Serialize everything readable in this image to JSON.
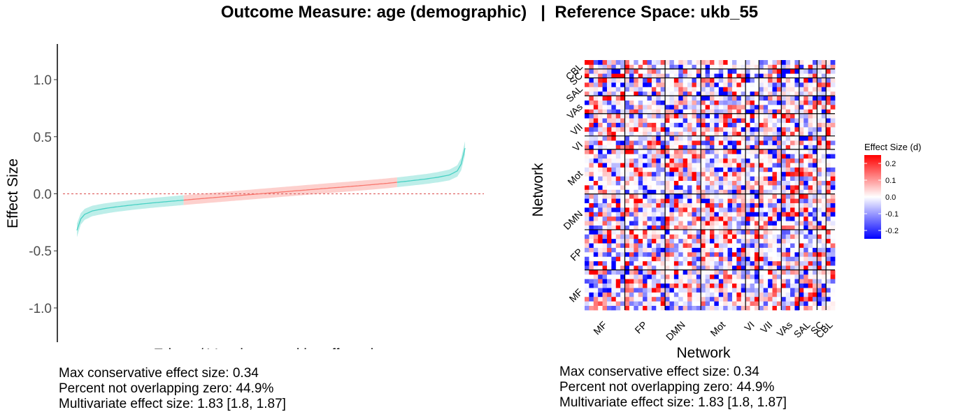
{
  "title": "Outcome Measure: age (demographic)   |  Reference Space: ukb_55",
  "chart_data": [
    {
      "type": "line",
      "xlabel": "Edges / Voxels, sorted by effect size",
      "ylabel": "Effect Size",
      "ylim": [
        -1.3,
        1.3
      ],
      "yticks": [
        1.0,
        0.5,
        0.0,
        -0.5,
        -1.0
      ],
      "ytick_labels": [
        "1.0",
        "0.5",
        "0.0",
        "-0.5",
        "-1.0"
      ],
      "reference_line": 0.0,
      "grid": false,
      "x": [
        0,
        0.005,
        0.01,
        0.02,
        0.04,
        0.07,
        0.1,
        0.15,
        0.2,
        0.25,
        0.3,
        0.35,
        0.4,
        0.45,
        0.5,
        0.55,
        0.6,
        0.65,
        0.7,
        0.75,
        0.8,
        0.85,
        0.9,
        0.93,
        0.96,
        0.98,
        0.99,
        1.0
      ],
      "y": [
        -0.32,
        -0.27,
        -0.22,
        -0.18,
        -0.15,
        -0.13,
        -0.115,
        -0.095,
        -0.078,
        -0.063,
        -0.048,
        -0.034,
        -0.02,
        -0.006,
        0.008,
        0.022,
        0.036,
        0.05,
        0.063,
        0.077,
        0.092,
        0.11,
        0.13,
        0.145,
        0.165,
        0.2,
        0.26,
        0.4
      ],
      "ci_halfwidth": [
        0.06,
        0.055,
        0.05,
        0.048,
        0.046,
        0.045,
        0.044,
        0.043,
        0.043,
        0.043,
        0.043,
        0.043,
        0.043,
        0.043,
        0.043,
        0.043,
        0.043,
        0.043,
        0.043,
        0.043,
        0.043,
        0.043,
        0.044,
        0.045,
        0.047,
        0.05,
        0.055,
        0.06
      ],
      "overlap_zero_range": [
        0.275,
        0.825
      ],
      "colors": {
        "not_overlapping": "#48D1C4",
        "overlapping": "#F8766D",
        "band_not_overlapping": "#BDEEE9",
        "band_overlapping": "#FDD0CD"
      },
      "stats": [
        "Max conservative effect size: 0.34",
        "Percent not overlapping zero: 44.9%",
        "Multivariate effect size: 1.83 [1.8, 1.87]"
      ]
    },
    {
      "type": "heatmap",
      "xlabel": "Network",
      "ylabel": "Network",
      "x_categories": [
        "MF",
        "FP",
        "DMN",
        "Mot",
        "VI",
        "VII",
        "VAs",
        "SAL",
        "SC",
        "CBL"
      ],
      "y_categories": [
        "MF",
        "FP",
        "DMN",
        "Mot",
        "VI",
        "VII",
        "VAs",
        "SAL",
        "SC",
        "CBL"
      ],
      "network_sizes": [
        9,
        9,
        8,
        10,
        3,
        5,
        4,
        4,
        2,
        2
      ],
      "legend_title": "Effect Size (d)",
      "legend_ticks": [
        0.2,
        0.1,
        0.0,
        -0.1,
        -0.2
      ],
      "legend_tick_labels": [
        "0.2",
        "0.1",
        "0.0",
        "-0.1",
        "-0.2"
      ],
      "color_range": [
        -0.25,
        0.25
      ],
      "colors": {
        "low": "#0000FF",
        "mid": "#FFFFFF",
        "high": "#FF0000"
      },
      "stats": [
        "Max conservative effect size: 0.34",
        "Percent not overlapping zero: 44.9%",
        "Multivariate effect size: 1.83 [1.8, 1.87]"
      ]
    }
  ]
}
